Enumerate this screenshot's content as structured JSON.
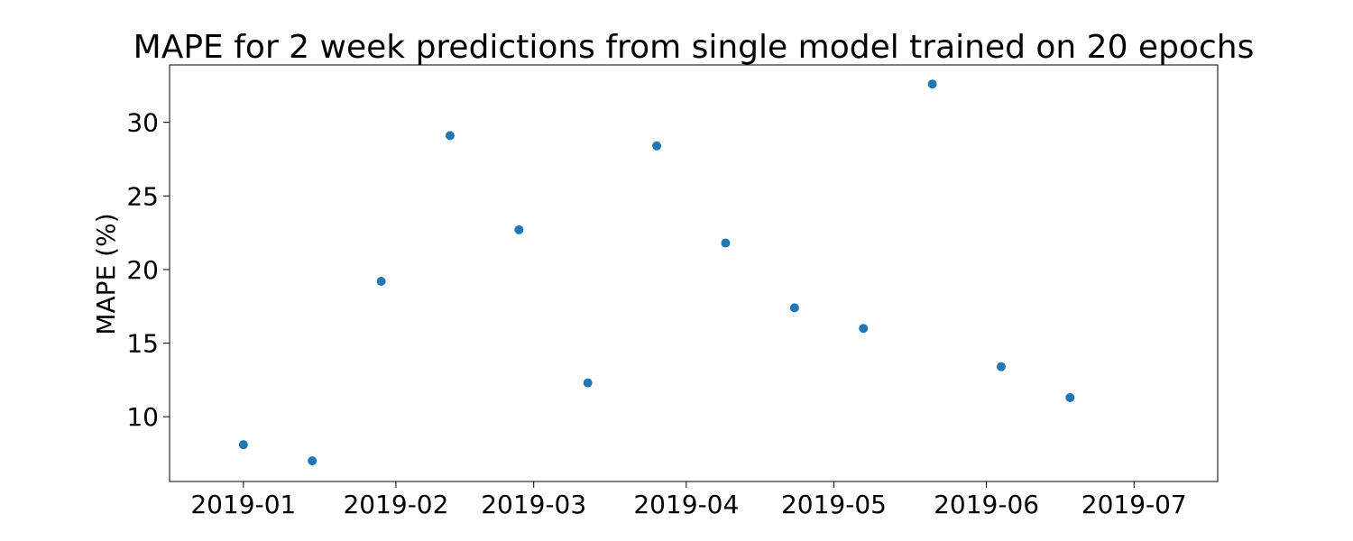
{
  "chart_data": {
    "type": "scatter",
    "title": "MAPE for 2 week predictions from single model trained on 20 epochs",
    "xlabel": "",
    "ylabel": "MAPE (%)",
    "x_type": "date",
    "xlim": [
      "2018-12-17",
      "2019-07-18"
    ],
    "ylim": [
      5.6,
      33.9
    ],
    "x_ticks": [
      "2019-01",
      "2019-02",
      "2019-03",
      "2019-04",
      "2019-05",
      "2019-06",
      "2019-07"
    ],
    "x_tick_dates": [
      "2019-01-01",
      "2019-02-01",
      "2019-03-01",
      "2019-04-01",
      "2019-05-01",
      "2019-06-01",
      "2019-07-01"
    ],
    "y_ticks": [
      10,
      15,
      20,
      25,
      30
    ],
    "grid": false,
    "legend": "none",
    "marker_color": "#1f77b4",
    "series": [
      {
        "x": [
          "2019-01-01",
          "2019-01-15",
          "2019-01-29",
          "2019-02-12",
          "2019-02-26",
          "2019-03-12",
          "2019-03-26",
          "2019-04-09",
          "2019-04-23",
          "2019-05-07",
          "2019-05-21",
          "2019-06-04",
          "2019-06-18"
        ],
        "y": [
          8.1,
          7.0,
          19.2,
          29.1,
          22.7,
          12.3,
          28.4,
          21.8,
          17.4,
          16.0,
          32.6,
          13.4,
          11.3
        ]
      }
    ]
  }
}
